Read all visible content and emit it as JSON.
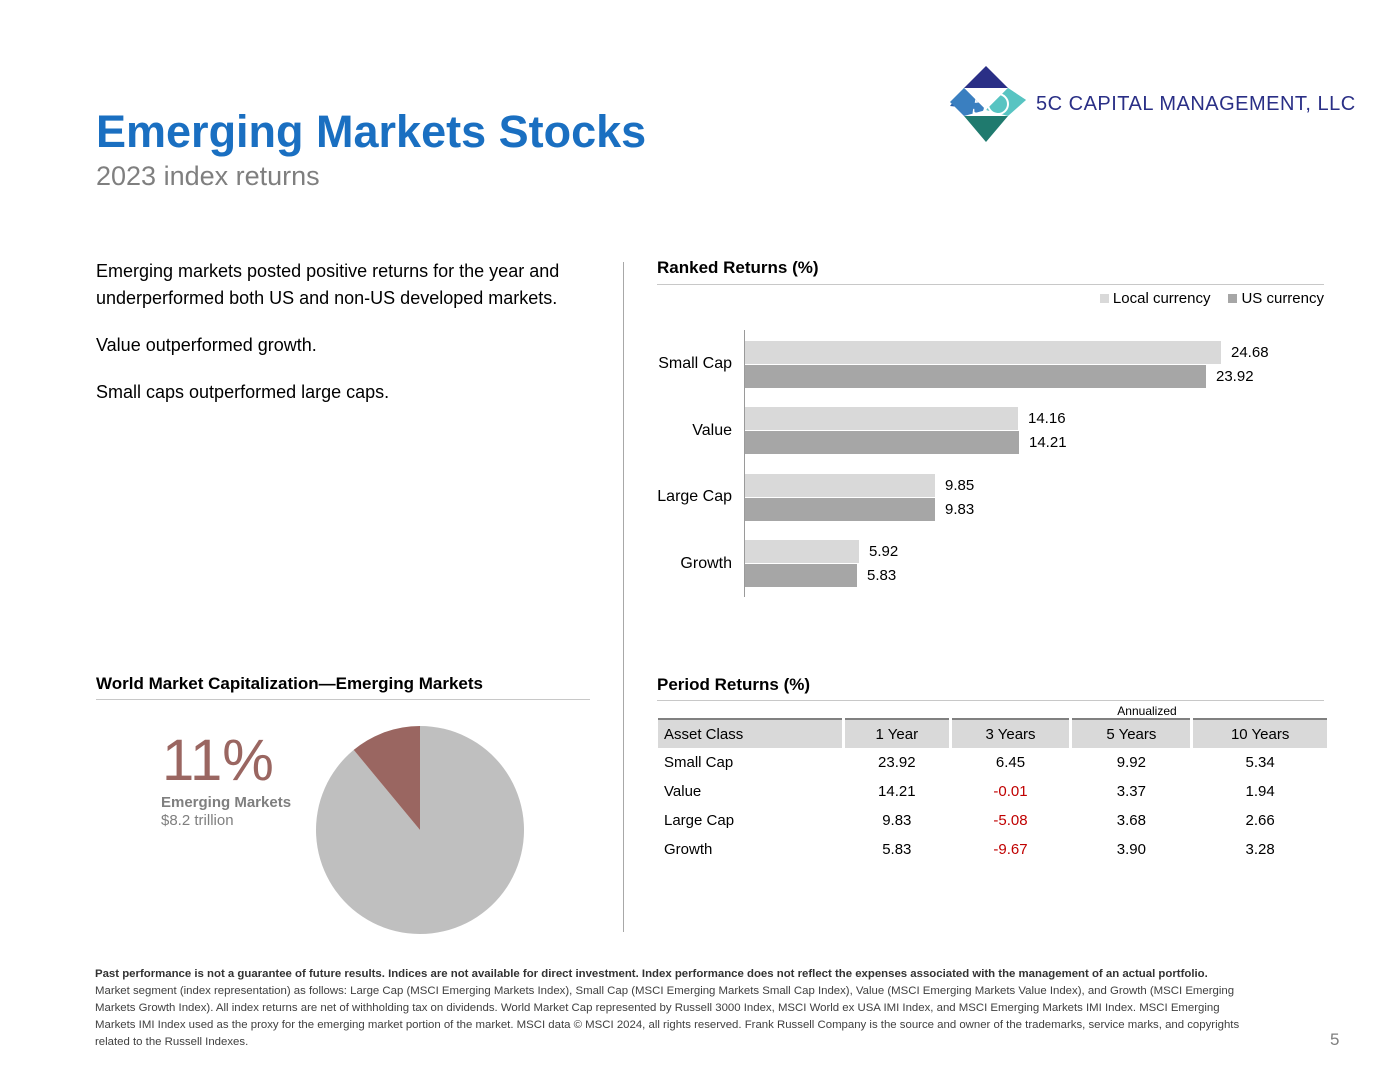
{
  "header": {
    "title": "Emerging Markets Stocks",
    "subtitle": "2023 index returns",
    "company": "5C CAPITAL MANAGEMENT, LLC"
  },
  "summary": [
    "Emerging markets posted positive returns for the year and underperformed both US and non-US developed markets.",
    "Value outperformed growth.",
    "Small caps outperformed large caps."
  ],
  "ranked": {
    "heading": "Ranked Returns (%)",
    "legend_local": "Local currency",
    "legend_us": "US currency",
    "labels": {
      "c0": "Small Cap",
      "c1": "Value",
      "c2": "Large Cap",
      "c3": "Growth",
      "l0": "24.68",
      "u0": "23.92",
      "l1": "14.16",
      "u1": "14.21",
      "l2": "9.85",
      "u2": "9.83",
      "l3": "5.92",
      "u3": "5.83"
    }
  },
  "world_cap": {
    "heading": "World Market Capitalization—Emerging Markets",
    "percent_label": "11%",
    "segment_label": "Emerging Markets",
    "segment_value": "$8.2 trillion"
  },
  "period": {
    "heading": "Period Returns (%)",
    "annualized_label": "Annualized",
    "columns": [
      "Asset Class",
      "1 Year",
      "3 Years",
      "5 Years",
      "10 Years"
    ],
    "rows": [
      [
        "Small Cap",
        "23.92",
        "6.45",
        "9.92",
        "5.34"
      ],
      [
        "Value",
        "14.21",
        "-0.01",
        "3.37",
        "1.94"
      ],
      [
        "Large Cap",
        "9.83",
        "-5.08",
        "3.68",
        "2.66"
      ],
      [
        "Growth",
        "5.83",
        "-9.67",
        "3.90",
        "3.28"
      ]
    ]
  },
  "footnote": {
    "bold": "Past performance is not a guarantee of future results. Indices are not available for direct investment. Index performance does not reflect the expenses associated with the management of an actual portfolio.",
    "text": "Market segment (index representation) as follows: Large Cap (MSCI Emerging Markets Index), Small Cap (MSCI Emerging Markets Small Cap Index), Value (MSCI Emerging Markets Value Index), and Growth (MSCI Emerging Markets Growth Index). All index returns are net of withholding tax on dividends. World Market Cap represented by Russell 3000 Index, MSCI World ex USA IMI Index, and MSCI Emerging Markets IMI Index. MSCI Emerging Markets IMI Index used as the proxy for the emerging market portion of the market. MSCI data © MSCI 2024, all rights reserved. Frank Russell Company is the source and owner of the trademarks, service marks, and copyrights related to the Russell Indexes."
  },
  "page_number": "5",
  "colors": {
    "title_blue": "#1a6fc1",
    "local_currency_bar": "#d9d9d9",
    "us_currency_bar": "#a6a6a6",
    "em_slice": "#9a6661",
    "rest_slice": "#bfbfbf",
    "negative": "#c00000"
  },
  "chart_data": [
    {
      "type": "bar",
      "orientation": "horizontal",
      "title": "Ranked Returns (%)",
      "categories": [
        "Small Cap",
        "Value",
        "Large Cap",
        "Growth"
      ],
      "series": [
        {
          "name": "Local currency",
          "values": [
            24.68,
            14.16,
            9.85,
            5.92
          ]
        },
        {
          "name": "US currency",
          "values": [
            23.92,
            14.21,
            9.83,
            5.83
          ]
        }
      ],
      "xlim": [
        0,
        26
      ],
      "legend": "top-right",
      "grid": false
    },
    {
      "type": "pie",
      "title": "World Market Capitalization—Emerging Markets",
      "slices": [
        {
          "label": "Emerging Markets",
          "value": 11
        },
        {
          "value": 89
        }
      ]
    }
  ]
}
